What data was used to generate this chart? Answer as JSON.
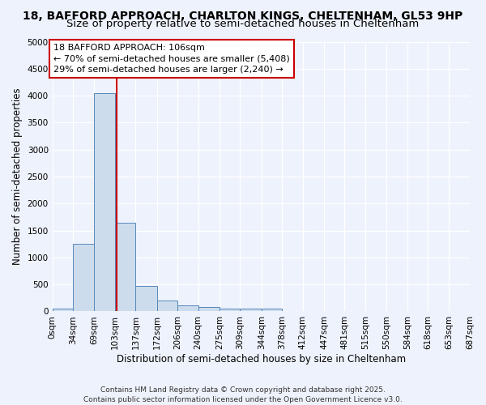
{
  "title_line1": "18, BAFFORD APPROACH, CHARLTON KINGS, CHELTENHAM, GL53 9HP",
  "title_line2": "Size of property relative to semi-detached houses in Cheltenham",
  "xlabel": "Distribution of semi-detached houses by size in Cheltenham",
  "ylabel": "Number of semi-detached properties",
  "bin_labels": [
    "0sqm",
    "34sqm",
    "69sqm",
    "103sqm",
    "137sqm",
    "172sqm",
    "206sqm",
    "240sqm",
    "275sqm",
    "309sqm",
    "344sqm",
    "378sqm",
    "412sqm",
    "447sqm",
    "481sqm",
    "515sqm",
    "550sqm",
    "584sqm",
    "618sqm",
    "653sqm",
    "687sqm"
  ],
  "bin_edges": [
    0,
    34,
    69,
    103,
    137,
    172,
    206,
    240,
    275,
    309,
    344,
    378,
    412,
    447,
    481,
    515,
    550,
    584,
    618,
    653,
    687
  ],
  "bar_heights": [
    50,
    1250,
    4050,
    1650,
    475,
    200,
    115,
    80,
    55,
    55,
    55,
    0,
    0,
    0,
    0,
    0,
    0,
    0,
    0,
    0
  ],
  "bar_color": "#cddcec",
  "bar_edge_color": "#5588bb",
  "property_value": 106,
  "property_line_color": "#cc0000",
  "annotation_text_line1": "18 BAFFORD APPROACH: 106sqm",
  "annotation_text_line2": "← 70% of semi-detached houses are smaller (5,408)",
  "annotation_text_line3": "29% of semi-detached houses are larger (2,240) →",
  "annotation_box_facecolor": "#ffffff",
  "annotation_box_edgecolor": "#cc0000",
  "ylim": [
    0,
    5000
  ],
  "yticks": [
    0,
    500,
    1000,
    1500,
    2000,
    2500,
    3000,
    3500,
    4000,
    4500,
    5000
  ],
  "footnote_line1": "Contains HM Land Registry data © Crown copyright and database right 2025.",
  "footnote_line2": "Contains public sector information licensed under the Open Government Licence v3.0.",
  "background_color": "#eef2fc",
  "grid_color": "#ffffff",
  "title_fontsize": 10,
  "subtitle_fontsize": 9.5,
  "axis_label_fontsize": 8.5,
  "tick_fontsize": 7.5,
  "annotation_fontsize": 8,
  "footnote_fontsize": 6.5
}
